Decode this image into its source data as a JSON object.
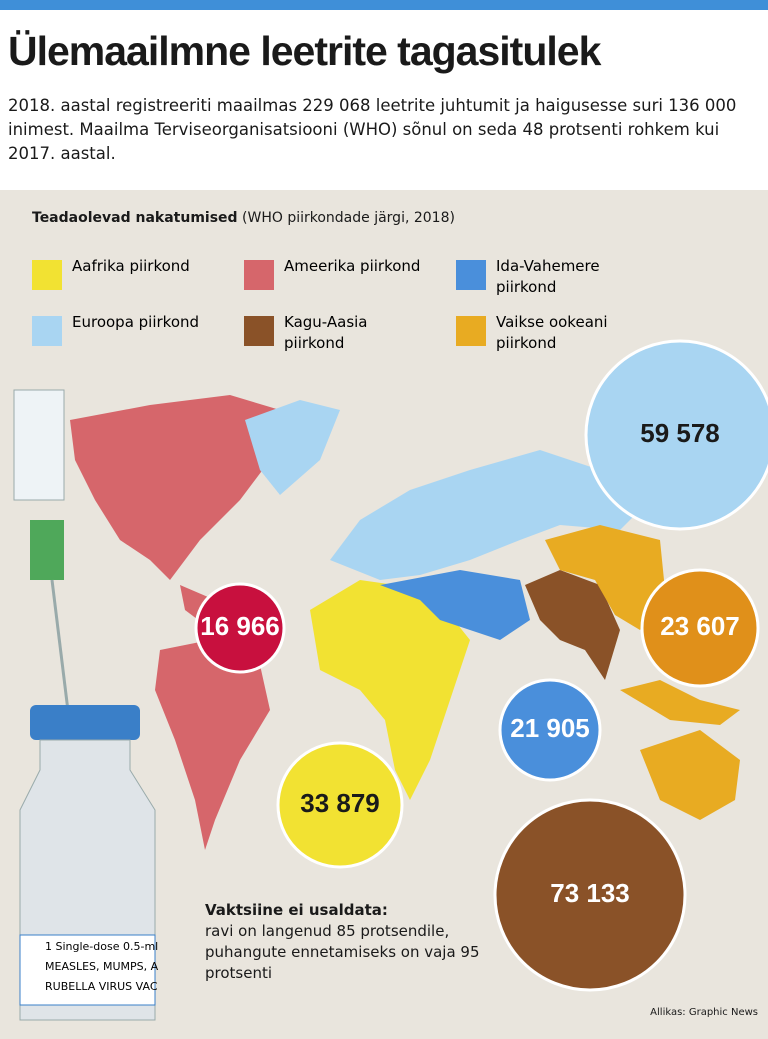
{
  "header": {
    "title": "Ülemaailmne leetrite tagasitulek",
    "intro": "2018. aastal registreeriti maailmas 229 068 leetrite juhtumit ja haigusesse suri 136 000 inimest. Maailma Terviseorganisatsiooni (WHO) sõnul on seda 48 protsenti rohkem kui 2017. aastal."
  },
  "legend": {
    "title": "Teadaolevad nakatumised",
    "subtitle": "(WHO piirkondade järgi, 2018)",
    "items": [
      {
        "label": "Aafrika piirkond",
        "color": "#f2e232"
      },
      {
        "label": "Ameerika piirkond",
        "color": "#d6666b"
      },
      {
        "label": "Ida-Vahemere piirkond",
        "color": "#4a8fdb"
      },
      {
        "label": "Euroopa piirkond",
        "color": "#a9d5f2"
      },
      {
        "label": "Kagu-Aasia piirkond",
        "color": "#8a5228"
      },
      {
        "label": "Vaikse ookeani piirkond",
        "color": "#e8ab22"
      }
    ]
  },
  "bubbles": [
    {
      "label": "59 578",
      "color": "#a9d5f2",
      "text_color": "#1a1a1a"
    },
    {
      "label": "23 607",
      "color": "#e0901a",
      "text_color": "#ffffff"
    },
    {
      "label": "21 905",
      "color": "#4a8fdb",
      "text_color": "#ffffff"
    },
    {
      "label": "16 966",
      "color": "#c8103e",
      "text_color": "#ffffff"
    },
    {
      "label": "33 879",
      "color": "#f2e232",
      "text_color": "#1a1a1a"
    },
    {
      "label": "73 133",
      "color": "#8a5228",
      "text_color": "#ffffff"
    }
  ],
  "note": {
    "title": "Vaktsiine ei usaldata:",
    "text": "ravi on langenud 85 protsendile, puhangute ennetamiseks on vaja 95 protsenti"
  },
  "vial_label": [
    "1 Single-dose 0.5-ml",
    "MEASLES, MUMPS, A",
    "RUBELLA VIRUS VAC"
  ],
  "source": "Allikas: Graphic News"
}
